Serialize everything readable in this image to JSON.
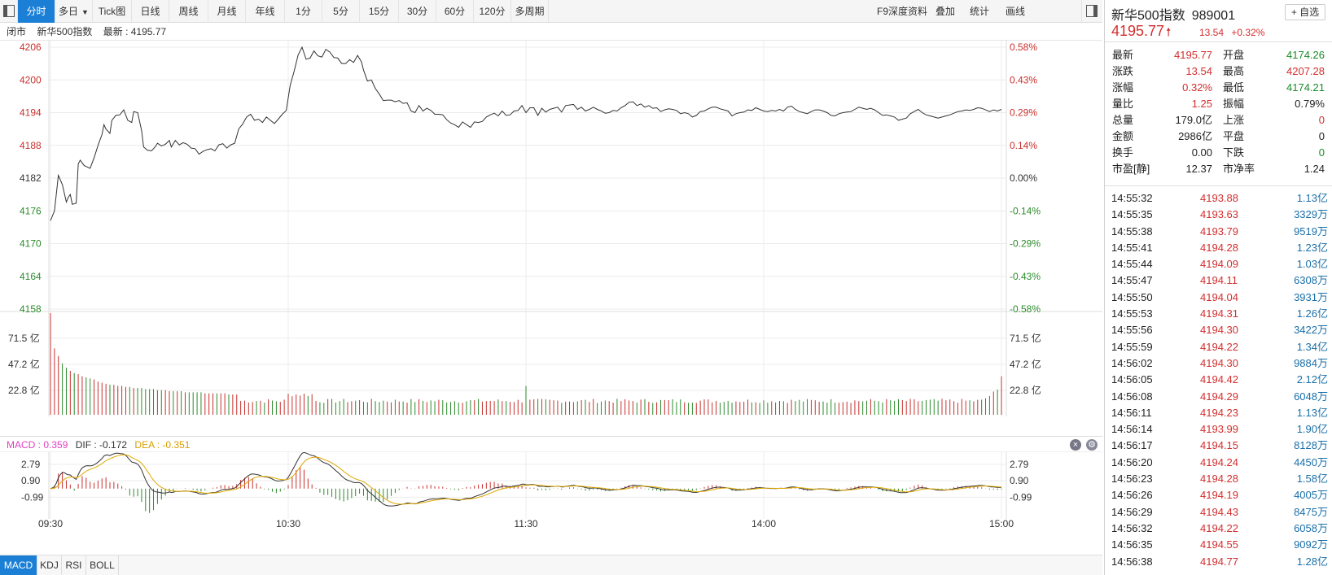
{
  "toolbar": {
    "tabs": [
      {
        "label": "分时",
        "active": true
      },
      {
        "label": "多日",
        "dropdown": true
      },
      {
        "label": "Tick图"
      },
      {
        "label": "日线"
      },
      {
        "label": "周线"
      },
      {
        "label": "月线"
      },
      {
        "label": "年线"
      },
      {
        "label": "1分"
      },
      {
        "label": "5分"
      },
      {
        "label": "15分"
      },
      {
        "label": "30分"
      },
      {
        "label": "60分"
      },
      {
        "label": "120分"
      },
      {
        "label": "多周期"
      }
    ],
    "right_buttons": [
      "F9深度资料",
      "叠加",
      "统计",
      "画线"
    ]
  },
  "info_line": {
    "status": "闭市",
    "name": "新华500指数",
    "latest_label": "最新 : 4195.77"
  },
  "chart_data": {
    "type": "line",
    "title": "",
    "x_tick_labels": [
      "09:30",
      "10:30",
      "11:30",
      "14:00",
      "15:00"
    ],
    "price_axis": {
      "ticks": [
        "4206",
        "4200",
        "4194",
        "4188",
        "4182",
        "4176",
        "4170",
        "4164",
        "4158"
      ],
      "ylim": [
        4158,
        4206
      ],
      "pre_close": 4182.23
    },
    "pct_axis": {
      "ticks": [
        "0.58%",
        "0.43%",
        "0.29%",
        "0.14%",
        "0.00%",
        "-0.14%",
        "-0.29%",
        "-0.43%",
        "-0.58%"
      ]
    },
    "price_series": [
      [
        0,
        4174.2
      ],
      [
        2,
        4176.0
      ],
      [
        4,
        4182.5
      ],
      [
        6,
        4180.8
      ],
      [
        8,
        4177.6
      ],
      [
        9,
        4178.5
      ],
      [
        10,
        4179.0
      ],
      [
        11,
        4177.2
      ],
      [
        13,
        4177.4
      ],
      [
        14,
        4184.6
      ],
      [
        15,
        4185.3
      ],
      [
        17,
        4184.3
      ],
      [
        20,
        4183.8
      ],
      [
        22,
        4185.7
      ],
      [
        24,
        4188.0
      ],
      [
        26,
        4190.0
      ],
      [
        27,
        4191.8
      ],
      [
        28,
        4191.0
      ],
      [
        30,
        4190.2
      ],
      [
        31,
        4192.6
      ],
      [
        33,
        4193.5
      ],
      [
        35,
        4193.6
      ],
      [
        37,
        4194.5
      ],
      [
        39,
        4192.6
      ],
      [
        41,
        4192.2
      ],
      [
        42,
        4194.2
      ],
      [
        44,
        4194.0
      ],
      [
        46,
        4190.7
      ],
      [
        47,
        4187.7
      ],
      [
        49,
        4187.1
      ],
      [
        51,
        4187.0
      ],
      [
        53,
        4187.8
      ],
      [
        54,
        4188.4
      ],
      [
        56,
        4187.9
      ],
      [
        58,
        4188.2
      ],
      [
        60,
        4188.9
      ],
      [
        61,
        4187.7
      ],
      [
        63,
        4188.9
      ],
      [
        65,
        4188.1
      ],
      [
        67,
        4188.5
      ],
      [
        69,
        4188.2
      ],
      [
        71,
        4187.5
      ],
      [
        73,
        4187.4
      ],
      [
        75,
        4186.4
      ],
      [
        77,
        4186.9
      ],
      [
        79,
        4187.2
      ],
      [
        81,
        4187.4
      ],
      [
        83,
        4187.0
      ],
      [
        85,
        4188.1
      ],
      [
        87,
        4188.3
      ],
      [
        89,
        4187.5
      ],
      [
        91,
        4188.1
      ],
      [
        93,
        4188.4
      ],
      [
        95,
        4191.0
      ],
      [
        97,
        4191.9
      ],
      [
        99,
        4193.2
      ],
      [
        101,
        4193.7
      ],
      [
        103,
        4192.6
      ],
      [
        105,
        4192.8
      ],
      [
        107,
        4192.2
      ],
      [
        109,
        4193.2
      ],
      [
        111,
        4192.6
      ],
      [
        113,
        4192.0
      ],
      [
        115,
        4192.8
      ],
      [
        117,
        4193.7
      ],
      [
        119,
        4194.4
      ],
      [
        121,
        4199.0
      ],
      [
        123,
        4201.6
      ],
      [
        125,
        4204.6
      ],
      [
        127,
        4206.0
      ],
      [
        129,
        4203.8
      ],
      [
        131,
        4204.0
      ],
      [
        133,
        4205.3
      ],
      [
        135,
        4204.4
      ],
      [
        137,
        4204.2
      ],
      [
        139,
        4205.6
      ],
      [
        141,
        4205.1
      ],
      [
        143,
        4204.1
      ],
      [
        145,
        4204.0
      ],
      [
        147,
        4203.0
      ],
      [
        149,
        4203.0
      ],
      [
        151,
        4203.7
      ],
      [
        153,
        4203.2
      ],
      [
        155,
        4204.5
      ],
      [
        157,
        4203.3
      ],
      [
        158,
        4201.8
      ],
      [
        160,
        4199.8
      ],
      [
        162,
        4200.0
      ],
      [
        164,
        4198.4
      ],
      [
        166,
        4197.4
      ],
      [
        168,
        4196.2
      ],
      [
        170,
        4196.3
      ],
      [
        172,
        4196.3
      ],
      [
        174,
        4196.0
      ],
      [
        176,
        4196.2
      ],
      [
        178,
        4195.7
      ],
      [
        180,
        4195.8
      ],
      [
        182,
        4194.3
      ],
      [
        184,
        4194.0
      ],
      [
        186,
        4195.3
      ],
      [
        188,
        4194.3
      ],
      [
        190,
        4194.8
      ],
      [
        192,
        4194.4
      ],
      [
        194,
        4193.7
      ],
      [
        196,
        4193.7
      ],
      [
        198,
        4193.6
      ],
      [
        200,
        4192.7
      ],
      [
        202,
        4192.1
      ],
      [
        204,
        4191.8
      ],
      [
        206,
        4191.3
      ],
      [
        208,
        4192.3
      ],
      [
        210,
        4191.8
      ],
      [
        212,
        4191.3
      ],
      [
        214,
        4192.3
      ],
      [
        216,
        4192.2
      ],
      [
        218,
        4192.4
      ],
      [
        220,
        4193.2
      ],
      [
        222,
        4193.6
      ],
      [
        224,
        4193.9
      ],
      [
        226,
        4193.4
      ],
      [
        228,
        4194.3
      ],
      [
        230,
        4193.5
      ],
      [
        232,
        4193.6
      ],
      [
        234,
        4194.3
      ],
      [
        236,
        4194.4
      ],
      [
        238,
        4195.3
      ],
      [
        240,
        4194.0
      ],
      [
        242,
        4194.9
      ],
      [
        244,
        4194.9
      ],
      [
        246,
        4193.5
      ],
      [
        248,
        4194.8
      ],
      [
        250,
        4194.1
      ],
      [
        252,
        4194.6
      ],
      [
        254,
        4194.8
      ],
      [
        256,
        4195.0
      ],
      [
        258,
        4194.1
      ],
      [
        260,
        4195.3
      ],
      [
        262,
        4195.4
      ],
      [
        264,
        4195.5
      ],
      [
        266,
        4194.6
      ],
      [
        268,
        4195.0
      ],
      [
        270,
        4194.3
      ],
      [
        272,
        4194.6
      ],
      [
        274,
        4195.0
      ],
      [
        276,
        4194.6
      ],
      [
        278,
        4194.3
      ],
      [
        280,
        4193.9
      ],
      [
        282,
        4194.0
      ],
      [
        284,
        4194.4
      ],
      [
        286,
        4194.3
      ],
      [
        288,
        4194.9
      ],
      [
        290,
        4195.3
      ],
      [
        292,
        4195.9
      ],
      [
        294,
        4196.0
      ],
      [
        296,
        4195.3
      ],
      [
        298,
        4195.6
      ],
      [
        300,
        4195.0
      ],
      [
        302,
        4195.3
      ],
      [
        304,
        4194.8
      ],
      [
        306,
        4194.9
      ],
      [
        308,
        4194.2
      ],
      [
        310,
        4194.5
      ],
      [
        312,
        4194.7
      ],
      [
        314,
        4194.6
      ],
      [
        316,
        4194.4
      ],
      [
        318,
        4193.8
      ],
      [
        320,
        4194.0
      ],
      [
        322,
        4193.8
      ],
      [
        324,
        4193.2
      ],
      [
        326,
        4193.5
      ],
      [
        328,
        4194.2
      ],
      [
        330,
        4194.3
      ],
      [
        332,
        4194.7
      ],
      [
        334,
        4195.0
      ],
      [
        336,
        4195.0
      ],
      [
        338,
        4194.7
      ],
      [
        340,
        4194.5
      ],
      [
        342,
        4194.3
      ],
      [
        344,
        4193.4
      ],
      [
        346,
        4193.8
      ],
      [
        348,
        4194.0
      ],
      [
        350,
        4194.1
      ],
      [
        352,
        4194.5
      ],
      [
        354,
        4194.4
      ],
      [
        356,
        4194.9
      ],
      [
        358,
        4194.6
      ],
      [
        360,
        4194.3
      ],
      [
        362,
        4194.2
      ],
      [
        364,
        4194.4
      ],
      [
        366,
        4194.3
      ],
      [
        368,
        4194.6
      ],
      [
        370,
        4194.3
      ],
      [
        372,
        4195.0
      ],
      [
        374,
        4195.2
      ],
      [
        376,
        4194.6
      ],
      [
        378,
        4194.2
      ],
      [
        380,
        4194.0
      ],
      [
        382,
        4193.8
      ],
      [
        384,
        4194.2
      ],
      [
        386,
        4194.5
      ],
      [
        388,
        4194.5
      ],
      [
        390,
        4194.3
      ],
      [
        392,
        4194.0
      ],
      [
        394,
        4193.5
      ],
      [
        396,
        4193.4
      ],
      [
        398,
        4193.8
      ],
      [
        400,
        4194.0
      ],
      [
        402,
        4194.1
      ],
      [
        404,
        4194.2
      ],
      [
        406,
        4194.6
      ],
      [
        408,
        4195.0
      ],
      [
        410,
        4194.8
      ],
      [
        412,
        4194.6
      ],
      [
        414,
        4194.8
      ],
      [
        416,
        4194.5
      ],
      [
        418,
        4194.0
      ],
      [
        420,
        4193.5
      ],
      [
        422,
        4193.6
      ],
      [
        424,
        4193.4
      ],
      [
        426,
        4193.2
      ],
      [
        428,
        4192.6
      ],
      [
        430,
        4192.8
      ],
      [
        432,
        4193.0
      ],
      [
        434,
        4193.8
      ],
      [
        436,
        4194.2
      ],
      [
        438,
        4194.6
      ],
      [
        440,
        4194.0
      ],
      [
        442,
        4193.6
      ],
      [
        444,
        4193.4
      ],
      [
        446,
        4193.2
      ],
      [
        448,
        4193.0
      ],
      [
        450,
        4193.2
      ],
      [
        452,
        4193.4
      ],
      [
        454,
        4193.6
      ],
      [
        456,
        4193.9
      ],
      [
        458,
        4194.2
      ],
      [
        460,
        4194.3
      ],
      [
        462,
        4194.5
      ],
      [
        464,
        4194.4
      ],
      [
        466,
        4194.6
      ],
      [
        468,
        4194.9
      ],
      [
        470,
        4194.8
      ],
      [
        472,
        4194.5
      ],
      [
        474,
        4194.2
      ],
      [
        476,
        4194.5
      ],
      [
        478,
        4194.3
      ],
      [
        480,
        4194.6
      ]
    ],
    "volume_axis": {
      "ticks": [
        "71.5 亿",
        "47.2 亿",
        "22.8 亿"
      ],
      "ylim": [
        0,
        95
      ]
    },
    "volume_series": {
      "open_bar": 95,
      "early": [
        95,
        62,
        55,
        48,
        44,
        41,
        39,
        38,
        36,
        35,
        34,
        33,
        31,
        30,
        29,
        28,
        28,
        27,
        27,
        26,
        26,
        25,
        25,
        25,
        24,
        24,
        24,
        23,
        23,
        23,
        22,
        22,
        22,
        22,
        21,
        21,
        21,
        21,
        21,
        20,
        20,
        20,
        20,
        20,
        20,
        19,
        19,
        19
      ],
      "base": 11,
      "spike_noon_index": 240,
      "spike_noon_value": 27,
      "close_bar": 36
    },
    "macd_axis": {
      "ticks": [
        "2.79",
        "0.90",
        "-0.99"
      ],
      "ylim": [
        -3.2,
        4.0
      ]
    },
    "macd_header": {
      "macd_label": "MACD : 0.359",
      "dif_label": "DIF : -0.172",
      "dea_label": "DEA : -0.351"
    },
    "colors": {
      "up": "#c9302c",
      "down": "#2b8a2b",
      "price_line": "#333333",
      "dif": "#333333",
      "dea": "#e0a800",
      "macd_label": "#e040c0"
    }
  },
  "bottom_tabs": [
    {
      "label": "MACD",
      "active": true
    },
    {
      "label": "KDJ"
    },
    {
      "label": "RSI"
    },
    {
      "label": "BOLL"
    }
  ],
  "right_panel": {
    "name": "新华500指数",
    "code": "989001",
    "watch_label": "+ 自选",
    "price": "4195.77",
    "change": "13.54",
    "change_pct": "+0.32%",
    "stats": [
      {
        "k1": "最新",
        "v1": "4195.77",
        "c1": "red",
        "k2": "开盘",
        "v2": "4174.26",
        "c2": "green"
      },
      {
        "k1": "涨跌",
        "v1": "13.54",
        "c1": "red",
        "k2": "最高",
        "v2": "4207.28",
        "c2": "red"
      },
      {
        "k1": "涨幅",
        "v1": "0.32%",
        "c1": "red",
        "k2": "最低",
        "v2": "4174.21",
        "c2": "green"
      },
      {
        "k1": "量比",
        "v1": "1.25",
        "c1": "red",
        "k2": "振幅",
        "v2": "0.79%",
        "c2": "blk"
      },
      {
        "k1": "总量",
        "v1": "179.0亿",
        "c1": "blk",
        "k2": "上涨",
        "v2": "0",
        "c2": "red"
      },
      {
        "k1": "金额",
        "v1": "2986亿",
        "c1": "blk",
        "k2": "平盘",
        "v2": "0",
        "c2": "blk"
      },
      {
        "k1": "换手",
        "v1": "0.00",
        "c1": "blk",
        "k2": "下跌",
        "v2": "0",
        "c2": "green"
      },
      {
        "k1": "市盈[静]",
        "v1": "12.37",
        "c1": "blk",
        "k2": "市净率",
        "v2": "1.24",
        "c2": "blk"
      }
    ],
    "ticks": [
      {
        "time": "14:55:32",
        "price": "4193.88",
        "amount": "1.13亿"
      },
      {
        "time": "14:55:35",
        "price": "4193.63",
        "amount": "3329万"
      },
      {
        "time": "14:55:38",
        "price": "4193.79",
        "amount": "9519万"
      },
      {
        "time": "14:55:41",
        "price": "4194.28",
        "amount": "1.23亿"
      },
      {
        "time": "14:55:44",
        "price": "4194.09",
        "amount": "1.03亿"
      },
      {
        "time": "14:55:47",
        "price": "4194.11",
        "amount": "6308万"
      },
      {
        "time": "14:55:50",
        "price": "4194.04",
        "amount": "3931万"
      },
      {
        "time": "14:55:53",
        "price": "4194.31",
        "amount": "1.26亿"
      },
      {
        "time": "14:55:56",
        "price": "4194.30",
        "amount": "3422万"
      },
      {
        "time": "14:55:59",
        "price": "4194.22",
        "amount": "1.34亿"
      },
      {
        "time": "14:56:02",
        "price": "4194.30",
        "amount": "9884万"
      },
      {
        "time": "14:56:05",
        "price": "4194.42",
        "amount": "2.12亿"
      },
      {
        "time": "14:56:08",
        "price": "4194.29",
        "amount": "6048万"
      },
      {
        "time": "14:56:11",
        "price": "4194.23",
        "amount": "1.13亿"
      },
      {
        "time": "14:56:14",
        "price": "4193.99",
        "amount": "1.90亿"
      },
      {
        "time": "14:56:17",
        "price": "4194.15",
        "amount": "8128万"
      },
      {
        "time": "14:56:20",
        "price": "4194.24",
        "amount": "4450万"
      },
      {
        "time": "14:56:23",
        "price": "4194.28",
        "amount": "1.58亿"
      },
      {
        "time": "14:56:26",
        "price": "4194.19",
        "amount": "4005万"
      },
      {
        "time": "14:56:29",
        "price": "4194.43",
        "amount": "8475万"
      },
      {
        "time": "14:56:32",
        "price": "4194.22",
        "amount": "6058万"
      },
      {
        "time": "14:56:35",
        "price": "4194.55",
        "amount": "9092万"
      },
      {
        "time": "14:56:38",
        "price": "4194.77",
        "amount": "1.28亿"
      }
    ]
  }
}
